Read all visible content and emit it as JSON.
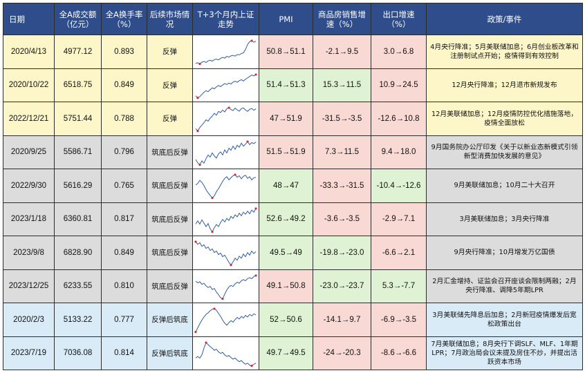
{
  "headers": {
    "date": "日期",
    "turnover": "全A成交额\n（亿元）",
    "turnover_rate": "全A换手率\n（%）",
    "market": "后续市场情\n况",
    "trend": "T+3个月内上证\n走势",
    "pmi": "PMI",
    "housing": "商品房销售增\n速（%）",
    "export": "出口增速\n（%）",
    "policy": "政策/事件"
  },
  "colors": {
    "header_bg": "#2f4d8a",
    "yellow_group": "#fdf6c8",
    "gray_group": "#dcdcdc",
    "blue_group": "#d9ebf7",
    "up_cell": "#f8d9d3",
    "down_cell": "#dff2d3",
    "sparkline": "#2e5aa7",
    "peak_dot": "#d9262b"
  },
  "rows": [
    {
      "date": "2020/4/13",
      "turnover": "4977.12",
      "turnover_rate": "0.893",
      "market": "反弹",
      "pmi": "50.8→51.1",
      "pmi_dir": "up",
      "housing": "-2.1→9.5",
      "housing_dir": "up",
      "export": "3.0→6.8",
      "export_dir": "up",
      "policy": "4月央行降准；5月美联储加息；6月创业板改革和注册制试点开始；疫情得到有效控制",
      "group": "yellow",
      "trend": [
        0,
        0.3,
        -0.2,
        0.5,
        0.8,
        0.4,
        1.0,
        1.3,
        0.9,
        1.5,
        1.7,
        1.4,
        2.0,
        2.4,
        2.1,
        2.8,
        2.5,
        3.0,
        3.2,
        2.9,
        3.5,
        3.4,
        3.9,
        4.2,
        5.5,
        7.5,
        8.6,
        9.0,
        8.4,
        8.8
      ]
    },
    {
      "date": "2020/10/22",
      "turnover": "6518.75",
      "turnover_rate": "0.849",
      "market": "反弹",
      "pmi": "51.4→51.3",
      "pmi_dir": "down",
      "housing": "15.3→11.5",
      "housing_dir": "down",
      "export": "10.9→24.5",
      "export_dir": "up",
      "policy": "12月央行降准；12月退市新规发布",
      "group": "yellow",
      "trend": [
        0,
        -0.8,
        -0.3,
        0.6,
        1.5,
        2.2,
        1.8,
        2.6,
        3.4,
        3.0,
        3.8,
        4.4,
        3.9,
        4.6,
        5.2,
        4.8,
        5.4,
        5.0,
        5.8,
        6.2,
        5.7,
        6.4,
        6.8,
        6.3,
        7.0,
        7.6,
        8.2,
        8.8,
        8.4,
        9.0
      ]
    },
    {
      "date": "2022/12/21",
      "turnover": "5751.44",
      "turnover_rate": "0.788",
      "market": "反弹",
      "pmi": "47→51.9",
      "pmi_dir": "up",
      "housing": "-31.5→-3.5",
      "housing_dir": "up",
      "export": "-12.6→10.8",
      "export_dir": "up",
      "policy": "12月美联储加息；12月疫情防控优化措施落地，疫情全面放松",
      "group": "yellow",
      "trend": [
        0,
        -1.0,
        0.5,
        1.5,
        2.6,
        3.8,
        3.2,
        4.5,
        5.4,
        6.6,
        5.8,
        7.4,
        6.9,
        8.0,
        7.2,
        8.6,
        9.0,
        8.2,
        7.8,
        8.8,
        8.1,
        7.5,
        8.6,
        8.9,
        8.0,
        7.4,
        8.3,
        8.7,
        7.9,
        8.5
      ]
    },
    {
      "date": "2020/9/25",
      "turnover": "5586.71",
      "turnover_rate": "0.796",
      "market": "筑底后反弹",
      "pmi": "51.5→51.9",
      "pmi_dir": "up",
      "housing": "7.3→11.5",
      "housing_dir": "up",
      "export": "9.4→18.0",
      "export_dir": "up",
      "policy": "9月国务院办公厅印发《关于以新业态新模式引领新型消费加快发展的意见》",
      "group": "gray",
      "trend": [
        2,
        0.8,
        0,
        1.5,
        0.6,
        2.4,
        3.8,
        3.0,
        4.6,
        3.4,
        2.6,
        4.2,
        5.0,
        3.8,
        5.8,
        4.6,
        6.4,
        5.6,
        7.2,
        6.0,
        7.6,
        6.8,
        8.4,
        7.2,
        8.0,
        9.0,
        7.8,
        8.6,
        8.2,
        8.8
      ]
    },
    {
      "date": "2022/9/30",
      "turnover": "5616.29",
      "turnover_rate": "0.765",
      "market": "筑底后反弹",
      "pmi": "48→47",
      "pmi_dir": "down",
      "housing": "-33.3→-31.5",
      "housing_dir": "up",
      "export": "-10.4→-12.6",
      "export_dir": "down",
      "policy": "9月美联储加息；10月二十大召开",
      "group": "gray",
      "trend": [
        5,
        5.6,
        6.8,
        6.0,
        4.8,
        3.2,
        2.0,
        1.0,
        0,
        0.8,
        2.4,
        3.6,
        5.0,
        6.4,
        7.6,
        8.2,
        7.0,
        7.8,
        8.6,
        9.0,
        8.0,
        8.6,
        7.4,
        8.4,
        8.8,
        7.6,
        8.2,
        7.0,
        7.8,
        8.0
      ]
    },
    {
      "date": "2023/1/18",
      "turnover": "6360.81",
      "turnover_rate": "0.817",
      "market": "筑底后反弹",
      "pmi": "52.6→49.2",
      "pmi_dir": "down",
      "housing": "-3.6→-3.5",
      "housing_dir": "up",
      "export": "-2.9→7.1",
      "export_dir": "up",
      "policy": "3月美联储加息；3月央行降准",
      "group": "gray",
      "trend": [
        3,
        4.2,
        3.0,
        4.6,
        3.4,
        2.0,
        3.2,
        1.2,
        0,
        1.6,
        2.8,
        2.0,
        3.6,
        4.8,
        3.8,
        5.2,
        4.4,
        6.0,
        5.2,
        6.6,
        5.8,
        7.2,
        6.2,
        7.6,
        6.8,
        8.0,
        7.0,
        8.4,
        7.6,
        9.0
      ]
    },
    {
      "date": "2023/9/8",
      "turnover": "6828.90",
      "turnover_rate": "0.849",
      "market": "筑底后反弹",
      "pmi": "49.5→49",
      "pmi_dir": "down",
      "housing": "-19.8→-23.0",
      "housing_dir": "down",
      "export": "-6.6→2.1",
      "export_dir": "up",
      "policy": "9月央行降准；10月增发万亿国债",
      "group": "gray",
      "trend": [
        9,
        8.0,
        8.6,
        7.2,
        7.8,
        6.4,
        7.0,
        5.6,
        6.2,
        4.8,
        5.4,
        4.0,
        4.6,
        3.2,
        3.8,
        2.4,
        1.0,
        0,
        1.2,
        2.6,
        1.8,
        3.4,
        2.6,
        4.2,
        3.2,
        4.8,
        3.8,
        5.4,
        4.4,
        5.2
      ]
    },
    {
      "date": "2023/12/25",
      "turnover": "6233.55",
      "turnover_rate": "0.810",
      "market": "筑底后反弹",
      "pmi": "49.1→50.8",
      "pmi_dir": "up",
      "housing": "-23.0→-23.7",
      "housing_dir": "down",
      "export": "5.3→-7.7",
      "export_dir": "down",
      "policy": "2月汇金增持、证监会召开座谈会限制两融；2月央行降准、调降5年期LPR",
      "group": "gray",
      "trend": [
        6.8,
        6.2,
        6.6,
        5.6,
        6.0,
        5.0,
        4.4,
        4.8,
        3.6,
        4.0,
        2.6,
        1.6,
        0.4,
        0,
        1.8,
        3.4,
        4.6,
        5.2,
        4.8,
        5.8,
        6.4,
        6.0,
        7.0,
        7.4,
        7.0,
        7.8,
        8.2,
        7.8,
        8.6,
        9.0
      ]
    },
    {
      "date": "2020/2/3",
      "turnover": "5133.22",
      "turnover_rate": "0.777",
      "market": "反弹后筑底",
      "pmi": "52→50.6",
      "pmi_dir": "down",
      "housing": "-14.1→9.7",
      "housing_dir": "up",
      "export": "-6.9→-3.5",
      "export_dir": "up",
      "policy": "3月美联储先降息后加息；2月新冠疫情爆发后宽松政策出台",
      "group": "blue",
      "trend": [
        0,
        1.6,
        3.2,
        4.6,
        5.8,
        6.8,
        7.4,
        8.2,
        8.8,
        9.0,
        8.4,
        7.2,
        6.0,
        4.6,
        3.4,
        2.6,
        3.6,
        4.4,
        3.8,
        4.8,
        5.6,
        5.0,
        6.0,
        5.4,
        6.4,
        5.8,
        6.8,
        6.2,
        7.0,
        6.6
      ]
    },
    {
      "date": "2023/7/19",
      "turnover": "7036.08",
      "turnover_rate": "0.814",
      "market": "反弹后筑底",
      "pmi": "49.7→49.5",
      "pmi_dir": "down",
      "housing": "-24→-20.3",
      "housing_dir": "up",
      "export": "-8.6→-6.6",
      "export_dir": "up",
      "policy": "7月美联储加息；8月央行下调SLF、MLF、1年期LPR；7月政治局会议未提及房住不炒，并提出活跃资本市场",
      "group": "blue",
      "trend": [
        3,
        3.6,
        3.0,
        4.2,
        6.8,
        9.0,
        8.2,
        7.4,
        6.8,
        6.0,
        6.4,
        5.4,
        4.8,
        5.2,
        4.2,
        3.6,
        4.0,
        3.2,
        2.6,
        3.0,
        2.2,
        1.6,
        2.0,
        1.2,
        0.6,
        1.0,
        0.2,
        0,
        0.6,
        1.0
      ]
    }
  ]
}
